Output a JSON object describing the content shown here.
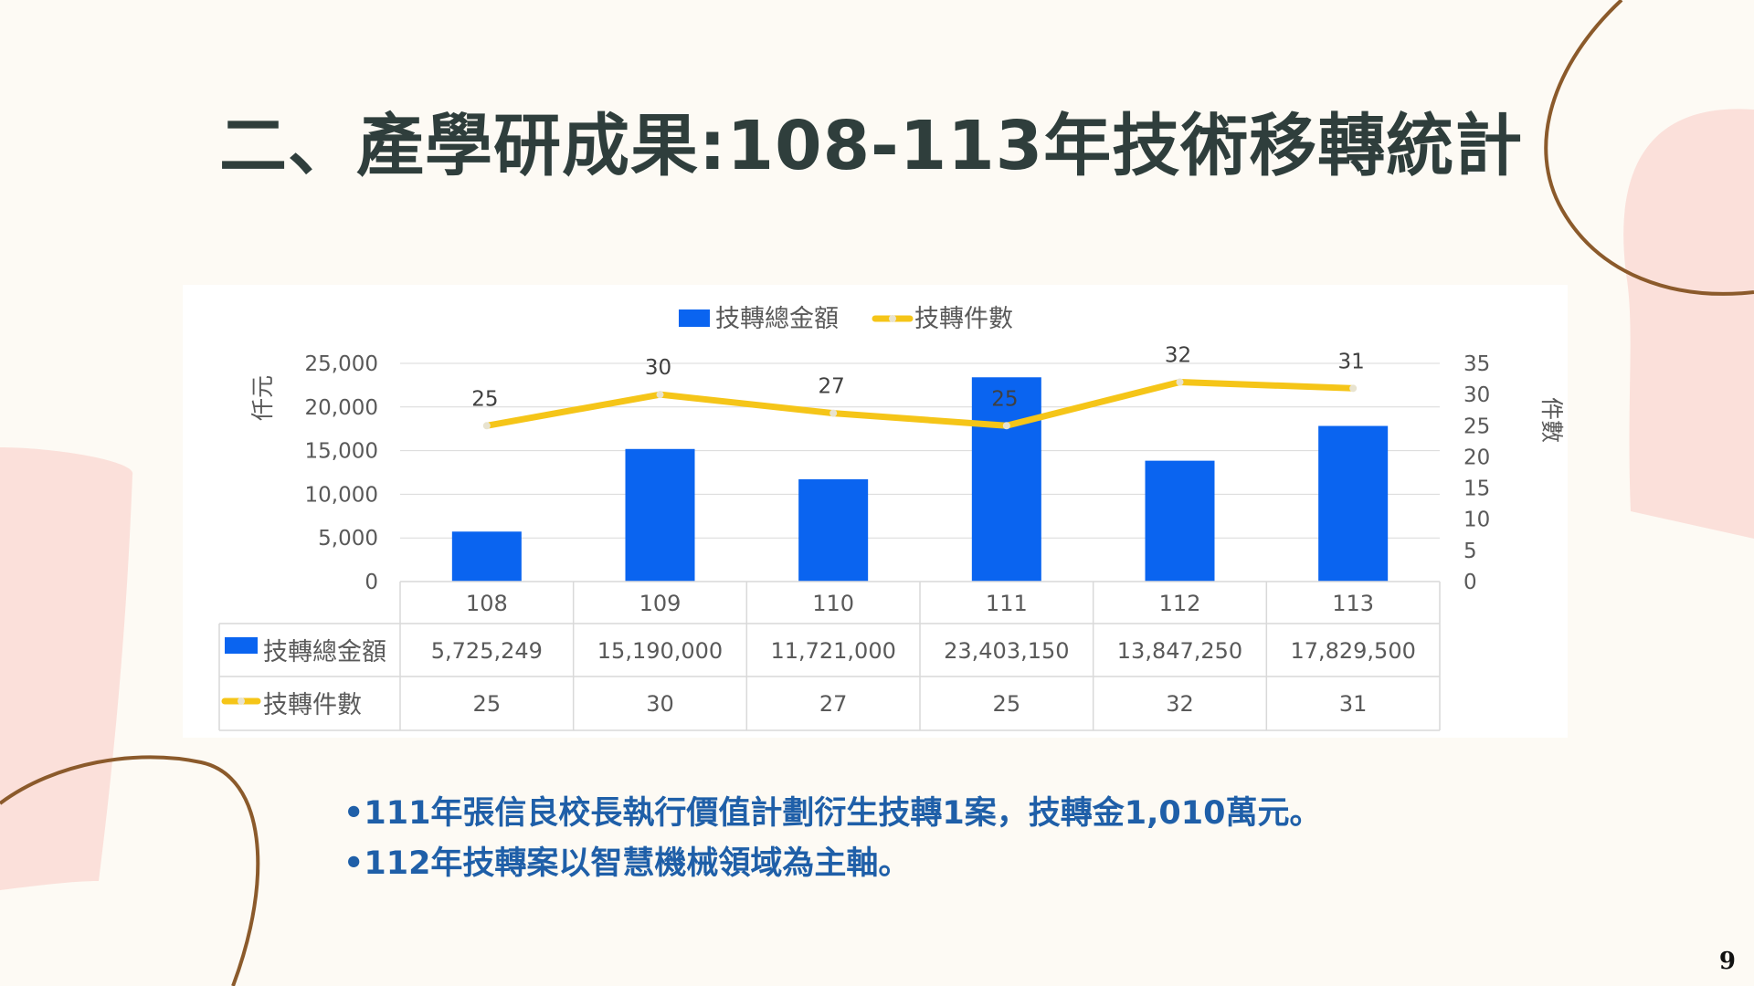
{
  "slide": {
    "title": "二、產學研成果:108-113年技術移轉統計",
    "page_number": "9",
    "colors": {
      "background": "#fdfaf4",
      "title": "#2f3e3c",
      "notes": "#1f5fa8",
      "decor_arc": "#8b5a2b",
      "decor_blob": "#fbe0da"
    }
  },
  "notes": [
    "•111年張信良校長執行價值計劃衍生技轉1案，技轉金1,010萬元。",
    "•112年技轉案以智慧機械領域為主軸。"
  ],
  "chart_data": {
    "type": "bar",
    "categories": [
      "108",
      "109",
      "110",
      "111",
      "112",
      "113"
    ],
    "series": [
      {
        "name": "技轉總金額",
        "type": "bar",
        "axis": "left",
        "color": "#0a64f0",
        "values": [
          5725,
          15190,
          11721,
          23403,
          13847,
          17830
        ],
        "table_values": [
          "5,725,249",
          "15,190,000",
          "11,721,000",
          "23,403,150",
          "13,847,250",
          "17,829,500"
        ]
      },
      {
        "name": "技轉件數",
        "type": "line",
        "axis": "right",
        "color": "#f5c518",
        "values": [
          25,
          30,
          27,
          25,
          32,
          31
        ],
        "table_values": [
          "25",
          "30",
          "27",
          "25",
          "32",
          "31"
        ]
      }
    ],
    "ylabel": "仟元",
    "y2label": "件數",
    "ylim": [
      0,
      25000
    ],
    "y2lim": [
      0,
      35
    ],
    "yticks": [
      "25,000",
      "20,000",
      "15,000",
      "10,000",
      "5,000",
      "0"
    ],
    "y2ticks": [
      "35",
      "30",
      "25",
      "20",
      "15",
      "10",
      "5",
      "0"
    ],
    "legend_position": "top",
    "data_table": true,
    "grid": true
  }
}
